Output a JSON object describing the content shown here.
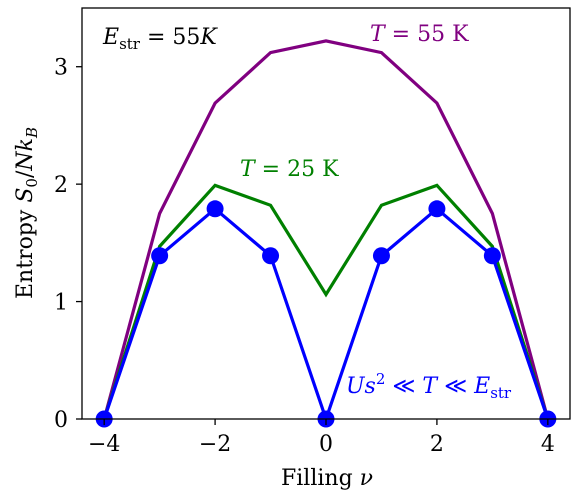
{
  "chart_data": {
    "type": "line",
    "xlabel": "Filling ν",
    "ylabel": "Entropy S₀/Nk_B",
    "xlim": [
      -4.4,
      4.4
    ],
    "ylim": [
      0,
      3.5
    ],
    "xticks": [
      -4,
      -2,
      0,
      2,
      4
    ],
    "xtick_labels": [
      "−4",
      "−2",
      "0",
      "2",
      "4"
    ],
    "yticks": [
      0,
      1,
      2,
      3
    ],
    "ytick_labels": [
      "0",
      "1",
      "2",
      "3"
    ],
    "grid": false,
    "series": [
      {
        "name": "T = 55 K",
        "color": "#800080",
        "markers": false,
        "x": [
          -4,
          -3,
          -2,
          -1,
          0,
          1,
          2,
          3,
          4
        ],
        "y": [
          0.0,
          1.75,
          2.69,
          3.12,
          3.22,
          3.12,
          2.69,
          1.75,
          0.0
        ]
      },
      {
        "name": "T = 25 K",
        "color": "#008000",
        "markers": false,
        "x": [
          -4,
          -3,
          -2,
          -1,
          0,
          1,
          2,
          3,
          4
        ],
        "y": [
          0.0,
          1.47,
          1.99,
          1.82,
          1.06,
          1.82,
          1.99,
          1.47,
          0.0
        ]
      },
      {
        "name": "Us² ≪ T ≪ E_str",
        "color": "#0000ff",
        "markers": true,
        "x": [
          -4,
          -3,
          -2,
          -1,
          0,
          1,
          2,
          3,
          4
        ],
        "y": [
          0.0,
          1.39,
          1.79,
          1.39,
          0.0,
          1.39,
          1.79,
          1.39,
          0.0
        ]
      }
    ],
    "annotations": [
      {
        "id": "estr",
        "text": "E_str = 55K",
        "color": "#000000"
      },
      {
        "id": "t55",
        "text": "T = 55 K",
        "color": "#800080"
      },
      {
        "id": "t25",
        "text": "T = 25 K",
        "color": "#008000"
      },
      {
        "id": "regime",
        "text": "Us² ≪ T ≪ E_str",
        "color": "#0000ff"
      }
    ]
  }
}
